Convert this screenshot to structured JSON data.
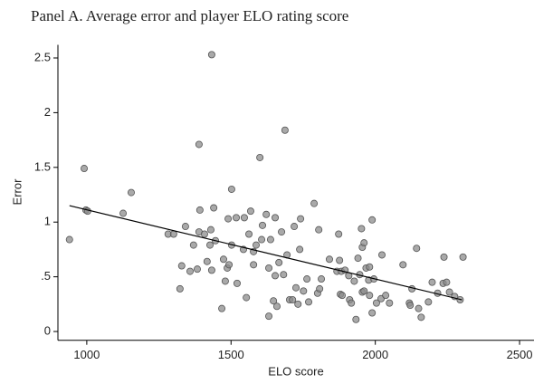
{
  "chart_data": {
    "type": "scatter",
    "title": "Panel A. Average error and player ELO rating score",
    "x_label": "ELO score",
    "y_label": "Error",
    "xlim": [
      900,
      2550
    ],
    "ylim": [
      -0.08,
      2.62
    ],
    "xticks": [
      1000,
      1500,
      2000,
      2500
    ],
    "yticks": [
      0,
      {
        "value": 0.5,
        "label": ".5"
      },
      1,
      1.5,
      2,
      2.5
    ],
    "color": "#8c8c8c",
    "x": [
      940,
      991,
      997,
      1003,
      1126,
      1154,
      1282,
      1301,
      1323,
      1329,
      1342,
      1358,
      1370,
      1383,
      1389,
      1389,
      1392,
      1408,
      1417,
      1427,
      1430,
      1433,
      1440,
      1433,
      1446,
      1468,
      1474,
      1480,
      1487,
      1493,
      1490,
      1502,
      1502,
      1518,
      1521,
      1546,
      1543,
      1553,
      1562,
      1568,
      1578,
      1578,
      1587,
      1600,
      1606,
      1609,
      1622,
      1631,
      1637,
      1631,
      1647,
      1653,
      1653,
      1659,
      1666,
      1675,
      1682,
      1687,
      1694,
      1703,
      1713,
      1719,
      1725,
      1732,
      1738,
      1741,
      1751,
      1763,
      1769,
      1788,
      1800,
      1804,
      1813,
      1807,
      1841,
      1867,
      1873,
      1879,
      1882,
      1885,
      1876,
      1895,
      1908,
      1911,
      1917,
      1927,
      1933,
      1940,
      1946,
      1952,
      1955,
      1955,
      1961,
      1961,
      1968,
      1977,
      1980,
      1980,
      1989,
      1989,
      1995,
      2004,
      2020,
      2023,
      2036,
      2049,
      2096,
      2118,
      2121,
      2127,
      2143,
      2150,
      2159,
      2184,
      2197,
      2216,
      2235,
      2238,
      2247,
      2257,
      2275,
      2294,
      2304
    ],
    "values": [
      0.84,
      1.49,
      1.11,
      1.1,
      1.08,
      1.27,
      0.89,
      0.89,
      0.39,
      0.6,
      0.96,
      0.55,
      0.79,
      0.57,
      1.71,
      0.91,
      1.11,
      0.89,
      0.64,
      0.79,
      0.93,
      2.53,
      1.13,
      0.56,
      0.83,
      0.21,
      0.66,
      0.46,
      0.58,
      0.61,
      1.03,
      1.3,
      0.79,
      1.04,
      0.44,
      1.04,
      0.75,
      0.31,
      0.89,
      1.1,
      0.61,
      0.73,
      0.79,
      1.59,
      0.84,
      0.97,
      1.07,
      0.58,
      0.84,
      0.14,
      0.28,
      1.04,
      0.51,
      0.23,
      0.63,
      0.91,
      0.52,
      1.84,
      0.7,
      0.29,
      0.29,
      0.96,
      0.4,
      0.25,
      0.75,
      1.03,
      0.37,
      0.48,
      0.27,
      1.17,
      0.35,
      0.93,
      0.48,
      0.39,
      0.66,
      0.55,
      0.89,
      0.34,
      0.55,
      0.33,
      0.65,
      0.56,
      0.51,
      0.29,
      0.26,
      0.46,
      0.11,
      0.67,
      0.52,
      0.94,
      0.36,
      0.77,
      0.81,
      0.37,
      0.58,
      0.47,
      0.59,
      0.33,
      1.02,
      0.17,
      0.48,
      0.26,
      0.3,
      0.7,
      0.33,
      0.26,
      0.61,
      0.26,
      0.24,
      0.39,
      0.76,
      0.21,
      0.13,
      0.27,
      0.45,
      0.35,
      0.44,
      0.68,
      0.45,
      0.36,
      0.32,
      0.29,
      0.68
    ],
    "fit_line": {
      "x": [
        940,
        2300
      ],
      "values": [
        1.15,
        0.29
      ],
      "color": "#000000"
    }
  }
}
